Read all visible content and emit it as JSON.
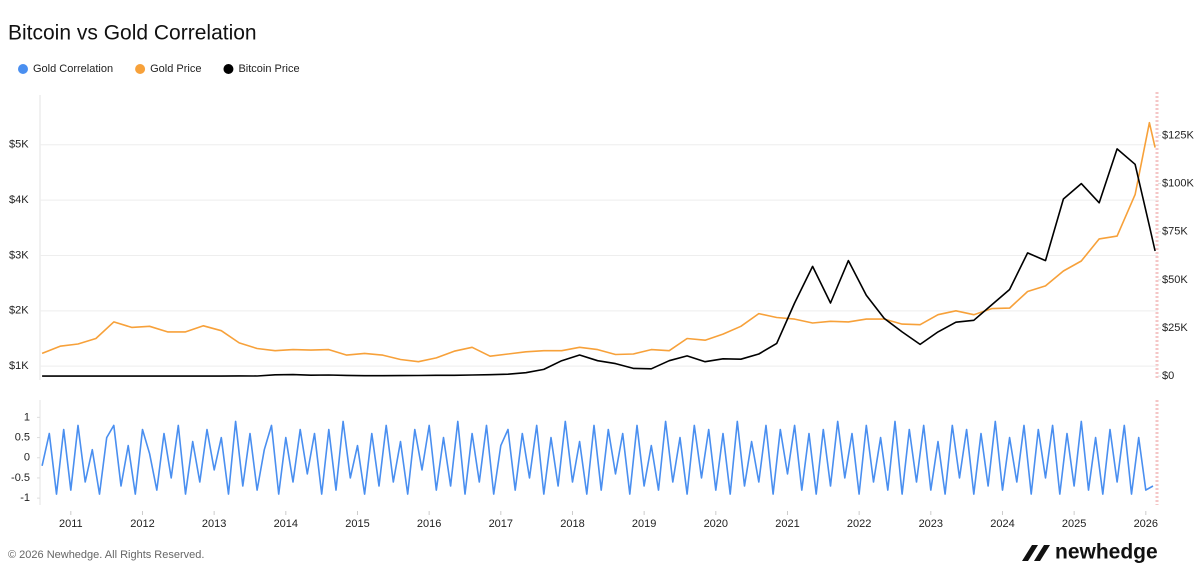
{
  "chart_data": [
    {
      "type": "line",
      "title": "Bitcoin vs Gold Correlation",
      "x": [
        2010.6,
        2010.85,
        2011.1,
        2011.35,
        2011.6,
        2011.85,
        2012.1,
        2012.35,
        2012.6,
        2012.85,
        2013.1,
        2013.35,
        2013.6,
        2013.85,
        2014.1,
        2014.35,
        2014.6,
        2014.85,
        2015.1,
        2015.35,
        2015.6,
        2015.85,
        2016.1,
        2016.35,
        2016.6,
        2016.85,
        2017.1,
        2017.35,
        2017.6,
        2017.85,
        2018.1,
        2018.35,
        2018.6,
        2018.85,
        2019.1,
        2019.35,
        2019.6,
        2019.85,
        2020.1,
        2020.35,
        2020.6,
        2020.85,
        2021.1,
        2021.35,
        2021.6,
        2021.85,
        2022.1,
        2022.35,
        2022.6,
        2022.85,
        2023.1,
        2023.35,
        2023.6,
        2023.85,
        2024.1,
        2024.35,
        2024.6,
        2024.85,
        2025.1,
        2025.35,
        2025.6,
        2025.85,
        2026.05,
        2026.13
      ],
      "series": [
        {
          "name": "Gold Price",
          "color": "#f7a13a",
          "values": [
            1230,
            1360,
            1400,
            1500,
            1800,
            1700,
            1720,
            1620,
            1620,
            1730,
            1640,
            1420,
            1320,
            1280,
            1300,
            1290,
            1300,
            1200,
            1230,
            1200,
            1120,
            1080,
            1150,
            1270,
            1340,
            1180,
            1220,
            1260,
            1280,
            1280,
            1340,
            1300,
            1210,
            1220,
            1300,
            1280,
            1500,
            1470,
            1580,
            1720,
            1950,
            1880,
            1850,
            1780,
            1810,
            1800,
            1850,
            1850,
            1760,
            1750,
            1930,
            2000,
            1930,
            2040,
            2050,
            2350,
            2450,
            2720,
            2900,
            3300,
            3350,
            4100,
            5400,
            4950
          ]
        },
        {
          "name": "Bitcoin Price",
          "color": "#000000",
          "axis": "y2",
          "values": [
            0,
            0,
            1,
            8,
            10,
            3,
            5,
            5,
            10,
            12,
            30,
            120,
            100,
            700,
            800,
            500,
            600,
            380,
            250,
            230,
            280,
            330,
            420,
            450,
            600,
            740,
            1000,
            1800,
            3500,
            8000,
            11000,
            8000,
            6500,
            4000,
            3800,
            8000,
            10500,
            7500,
            9000,
            8800,
            11500,
            17000,
            38000,
            57000,
            38000,
            60000,
            42000,
            30000,
            23000,
            16500,
            23000,
            28000,
            29000,
            37000,
            45000,
            64000,
            60000,
            92000,
            100000,
            90000,
            118000,
            110000,
            78000,
            65000
          ]
        }
      ],
      "xlim": [
        2010.57,
        2026.17
      ],
      "ylim": [
        750,
        5900
      ],
      "yticks": [
        {
          "value": 1000,
          "label": "$1K"
        },
        {
          "value": 2000,
          "label": "$2K"
        },
        {
          "value": 3000,
          "label": "$3K"
        },
        {
          "value": 4000,
          "label": "$4K"
        },
        {
          "value": 5000,
          "label": "$5K"
        }
      ],
      "y2lim": [
        -2000,
        146000
      ],
      "y2ticks": [
        {
          "value": 0,
          "label": "$0"
        },
        {
          "value": 25000,
          "label": "$25K"
        },
        {
          "value": 50000,
          "label": "$50K"
        },
        {
          "value": 75000,
          "label": "$75K"
        },
        {
          "value": 100000,
          "label": "$100K"
        },
        {
          "value": 125000,
          "label": "$125K"
        }
      ],
      "grid": true
    },
    {
      "type": "line",
      "x": [
        2010.6,
        2010.7,
        2010.8,
        2010.9,
        2011.0,
        2011.1,
        2011.2,
        2011.3,
        2011.4,
        2011.5,
        2011.6,
        2011.7,
        2011.8,
        2011.9,
        2012.0,
        2012.1,
        2012.2,
        2012.3,
        2012.4,
        2012.5,
        2012.6,
        2012.7,
        2012.8,
        2012.9,
        2013.0,
        2013.1,
        2013.2,
        2013.3,
        2013.4,
        2013.5,
        2013.6,
        2013.7,
        2013.8,
        2013.9,
        2014.0,
        2014.1,
        2014.2,
        2014.3,
        2014.4,
        2014.5,
        2014.6,
        2014.7,
        2014.8,
        2014.9,
        2015.0,
        2015.1,
        2015.2,
        2015.3,
        2015.4,
        2015.5,
        2015.6,
        2015.7,
        2015.8,
        2015.9,
        2016.0,
        2016.1,
        2016.2,
        2016.3,
        2016.4,
        2016.5,
        2016.6,
        2016.7,
        2016.8,
        2016.9,
        2017.0,
        2017.1,
        2017.2,
        2017.3,
        2017.4,
        2017.5,
        2017.6,
        2017.7,
        2017.8,
        2017.9,
        2018.0,
        2018.1,
        2018.2,
        2018.3,
        2018.4,
        2018.5,
        2018.6,
        2018.7,
        2018.8,
        2018.9,
        2019.0,
        2019.1,
        2019.2,
        2019.3,
        2019.4,
        2019.5,
        2019.6,
        2019.7,
        2019.8,
        2019.9,
        2020.0,
        2020.1,
        2020.2,
        2020.3,
        2020.4,
        2020.5,
        2020.6,
        2020.7,
        2020.8,
        2020.9,
        2021.0,
        2021.1,
        2021.2,
        2021.3,
        2021.4,
        2021.5,
        2021.6,
        2021.7,
        2021.8,
        2021.9,
        2022.0,
        2022.1,
        2022.2,
        2022.3,
        2022.4,
        2022.5,
        2022.6,
        2022.7,
        2022.8,
        2022.9,
        2023.0,
        2023.1,
        2023.2,
        2023.3,
        2023.4,
        2023.5,
        2023.6,
        2023.7,
        2023.8,
        2023.9,
        2024.0,
        2024.1,
        2024.2,
        2024.3,
        2024.4,
        2024.5,
        2024.6,
        2024.7,
        2024.8,
        2024.9,
        2025.0,
        2025.1,
        2025.2,
        2025.3,
        2025.4,
        2025.5,
        2025.6,
        2025.7,
        2025.8,
        2025.9,
        2026.0,
        2026.1
      ],
      "series": [
        {
          "name": "Gold Correlation",
          "color": "#4a8ff0",
          "values": [
            -0.2,
            0.6,
            -0.9,
            0.7,
            -0.8,
            0.8,
            -0.6,
            0.2,
            -0.9,
            0.5,
            0.8,
            -0.7,
            0.3,
            -0.9,
            0.7,
            0.1,
            -0.8,
            0.6,
            -0.5,
            0.8,
            -0.9,
            0.4,
            -0.6,
            0.7,
            -0.3,
            0.5,
            -0.9,
            0.9,
            -0.7,
            0.6,
            -0.8,
            0.2,
            0.8,
            -0.9,
            0.5,
            -0.6,
            0.7,
            -0.4,
            0.6,
            -0.9,
            0.7,
            -0.8,
            0.9,
            -0.5,
            0.3,
            -0.9,
            0.6,
            -0.7,
            0.8,
            -0.6,
            0.4,
            -0.9,
            0.7,
            -0.3,
            0.8,
            -0.8,
            0.5,
            -0.7,
            0.9,
            -0.9,
            0.6,
            -0.6,
            0.8,
            -0.9,
            0.3,
            0.7,
            -0.8,
            0.6,
            -0.5,
            0.8,
            -0.9,
            0.5,
            -0.7,
            0.9,
            -0.6,
            0.4,
            -0.9,
            0.8,
            -0.8,
            0.7,
            -0.4,
            0.6,
            -0.9,
            0.8,
            -0.7,
            0.3,
            -0.8,
            0.9,
            -0.6,
            0.5,
            -0.9,
            0.8,
            -0.5,
            0.7,
            -0.8,
            0.6,
            -0.9,
            0.9,
            -0.7,
            0.4,
            -0.6,
            0.8,
            -0.9,
            0.7,
            -0.4,
            0.8,
            -0.8,
            0.6,
            -0.9,
            0.7,
            -0.7,
            0.9,
            -0.5,
            0.6,
            -0.9,
            0.8,
            -0.6,
            0.5,
            -0.8,
            0.9,
            -0.9,
            0.7,
            -0.6,
            0.8,
            -0.8,
            0.4,
            -0.9,
            0.8,
            -0.5,
            0.7,
            -0.9,
            0.6,
            -0.7,
            0.9,
            -0.8,
            0.5,
            -0.6,
            0.8,
            -0.9,
            0.7,
            -0.5,
            0.8,
            -0.9,
            0.6,
            -0.7,
            0.9,
            -0.8,
            0.5,
            -0.9,
            0.7,
            -0.6,
            0.8,
            -0.9,
            0.5,
            -0.8,
            -0.7
          ]
        }
      ],
      "xlim": [
        2010.57,
        2026.17
      ],
      "xticks": [
        2011,
        2012,
        2013,
        2014,
        2015,
        2016,
        2017,
        2018,
        2019,
        2020,
        2021,
        2022,
        2023,
        2024,
        2025,
        2026
      ],
      "ylim": [
        -1.17,
        1.43
      ],
      "yticks": [
        1,
        0.5,
        0,
        -0.5,
        -1
      ],
      "grid": false
    }
  ],
  "footer": {
    "copyright": "© 2026 Newhedge. All Rights Reserved.",
    "brand": "newhedge"
  }
}
